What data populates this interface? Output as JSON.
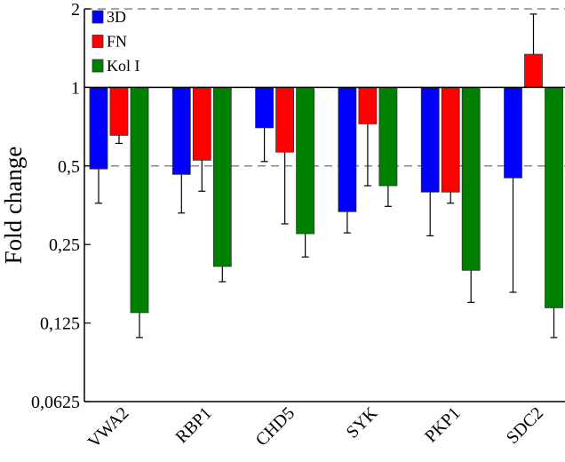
{
  "chart_data": {
    "type": "bar",
    "y_label": "Fold change",
    "log_base": 2,
    "categories": [
      "VWA2",
      "RBP1",
      "CHD5",
      "SYK",
      "PKP1",
      "SDC2"
    ],
    "baseline": 1,
    "series": [
      {
        "name": "3D",
        "color": "#0000ff",
        "values": [
          0.487,
          0.464,
          0.7,
          0.334,
          0.397,
          0.45
        ],
        "error_ends": [
          0.36,
          0.33,
          0.52,
          0.277,
          0.27,
          0.164
        ]
      },
      {
        "name": "FN",
        "color": "#ff0000",
        "values": [
          0.655,
          0.526,
          0.565,
          0.725,
          0.397,
          1.34
        ],
        "error_ends": [
          0.61,
          0.4,
          0.3,
          0.42,
          0.36,
          1.91
        ]
      },
      {
        "name": "Kol I",
        "color": "#008000",
        "values": [
          0.137,
          0.206,
          0.275,
          0.42,
          0.199,
          0.143
        ],
        "error_ends": [
          0.11,
          0.18,
          0.224,
          0.35,
          0.15,
          0.11
        ]
      }
    ],
    "ylim": [
      0.0625,
      2
    ],
    "yticks": [
      {
        "value": 0.0625,
        "label": "0,0625"
      },
      {
        "value": 0.125,
        "label": "0,125"
      },
      {
        "value": 0.25,
        "label": "0,25"
      },
      {
        "value": 0.5,
        "label": "0,5"
      },
      1,
      2
    ],
    "reference_lines": [
      0.5,
      2
    ],
    "legend": "top-left"
  }
}
